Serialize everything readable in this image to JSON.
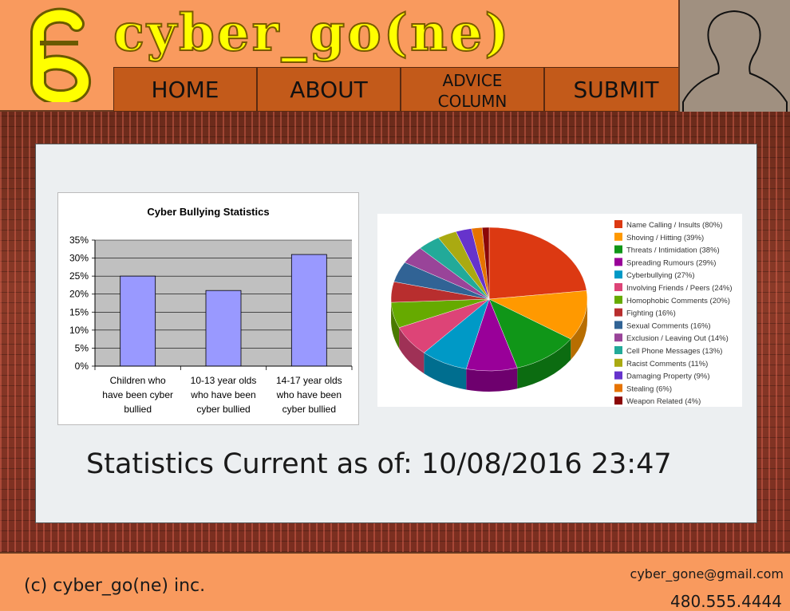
{
  "site": {
    "title": "cyber_go(ne)"
  },
  "nav": {
    "items": [
      {
        "label": "HOME"
      },
      {
        "label": "ABOUT"
      },
      {
        "label": "ADVICE COLUMN",
        "line1": "ADVICE",
        "line2": "COLUMN"
      },
      {
        "label": "SUBMIT"
      }
    ]
  },
  "stats_text": "Statistics Current as of: 10/08/2016  23:47",
  "footer": {
    "copyright": "(c) cyber_go(ne) inc.",
    "email": "cyber_gone@gmail.com",
    "phone": "480.555.4444"
  },
  "colors": {
    "header_bg": "#f99a5e",
    "nav_bg": "#c35a1a",
    "logo_yellow": "#ffff00",
    "bar_fill": "#9999ff",
    "plot_bg": "#c0c0c0"
  },
  "chart_data": [
    {
      "type": "bar",
      "title": "Cyber Bullying Statistics",
      "categories": [
        "Children who have been cyber bullied",
        "10-13 year olds who have been cyber bullied",
        "14-17 year olds who have been cyber bullied"
      ],
      "category_lines": [
        [
          "Children who",
          "have been cyber",
          "bullied"
        ],
        [
          "10-13 year olds",
          "who have been",
          "cyber bullied"
        ],
        [
          "14-17 year olds",
          "who have been",
          "cyber bullied"
        ]
      ],
      "values": [
        25,
        21,
        31
      ],
      "yticks": [
        "0%",
        "5%",
        "10%",
        "15%",
        "20%",
        "25%",
        "30%",
        "35%"
      ],
      "ylim": [
        0,
        35
      ],
      "grid": true,
      "xlabel": "",
      "ylabel": ""
    },
    {
      "type": "pie",
      "legend_position": "right",
      "labels": [
        "Name Calling / Insults (80%)",
        "Shoving / Hitting (39%)",
        "Threats / Intimidation (38%)",
        "Spreading Rumours (29%)",
        "Cyberbullying (27%)",
        "Involving Friends / Peers (24%)",
        "Homophobic Comments (20%)",
        "Fighting (16%)",
        "Sexual Comments (16%)",
        "Exclusion / Leaving Out (14%)",
        "Cell Phone Messages (13%)",
        "Racist Comments (11%)",
        "Damaging Property (9%)",
        "Stealing (6%)",
        "Weapon Related (4%)"
      ],
      "values": [
        80,
        39,
        38,
        29,
        27,
        24,
        20,
        16,
        16,
        14,
        13,
        11,
        9,
        6,
        4
      ],
      "colors": [
        "#dc3912",
        "#ff9900",
        "#109618",
        "#990099",
        "#0099c6",
        "#dd4477",
        "#66aa00",
        "#b82e2e",
        "#316395",
        "#994499",
        "#22aa99",
        "#aaaa11",
        "#6633cc",
        "#e67300",
        "#8b0707"
      ]
    }
  ]
}
